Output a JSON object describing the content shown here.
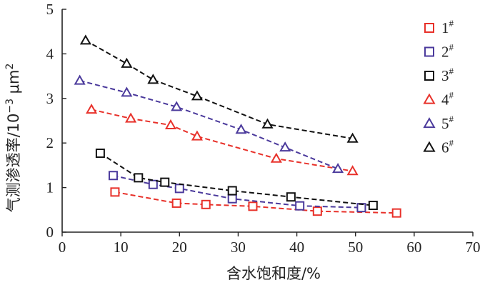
{
  "chart_data": {
    "type": "line",
    "xlabel": "含水饱和度/%",
    "ylabel_main": "气测渗透率/10",
    "ylabel_exp": "−3",
    "ylabel_unit": " μm",
    "ylabel_unit_exp": "2",
    "xlim": [
      0,
      70
    ],
    "ylim": [
      0,
      5
    ],
    "x_ticks": [
      "0",
      "10",
      "20",
      "30",
      "40",
      "50",
      "60",
      "70"
    ],
    "y_ticks": [
      "0",
      "1",
      "2",
      "3",
      "4",
      "5"
    ],
    "grid": false,
    "legend_position": "right",
    "series": [
      {
        "name": "1",
        "name_sup": "#",
        "color": "#e8312a",
        "marker": "square",
        "x": [
          9.0,
          19.5,
          24.5,
          32.5,
          43.5,
          57.0
        ],
        "y": [
          0.9,
          0.65,
          0.62,
          0.58,
          0.47,
          0.43
        ]
      },
      {
        "name": "2",
        "name_sup": "#",
        "color": "#4b3a9c",
        "marker": "square",
        "x": [
          8.7,
          15.5,
          20.0,
          29.0,
          40.5,
          51.0
        ],
        "y": [
          1.27,
          1.07,
          0.98,
          0.75,
          0.59,
          0.55
        ]
      },
      {
        "name": "3",
        "name_sup": "#",
        "color": "#111111",
        "marker": "square",
        "x": [
          6.5,
          13.0,
          17.5,
          29.0,
          39.0,
          53.0
        ],
        "y": [
          1.77,
          1.22,
          1.12,
          0.93,
          0.79,
          0.6
        ]
      },
      {
        "name": "4",
        "name_sup": "#",
        "color": "#e8312a",
        "marker": "triangle",
        "x": [
          5.0,
          11.7,
          18.5,
          23.0,
          36.5,
          49.5
        ],
        "y": [
          2.75,
          2.55,
          2.4,
          2.15,
          1.65,
          1.37
        ]
      },
      {
        "name": "5",
        "name_sup": "#",
        "color": "#4b3a9c",
        "marker": "triangle",
        "x": [
          3.0,
          11.0,
          19.5,
          30.5,
          38.0,
          47.0
        ],
        "y": [
          3.4,
          3.13,
          2.81,
          2.3,
          1.9,
          1.42
        ]
      },
      {
        "name": "6",
        "name_sup": "#",
        "color": "#111111",
        "marker": "triangle",
        "x": [
          4.0,
          11.0,
          15.5,
          23.0,
          35.0,
          49.5
        ],
        "y": [
          4.3,
          3.78,
          3.42,
          3.05,
          2.42,
          2.1
        ]
      }
    ]
  }
}
